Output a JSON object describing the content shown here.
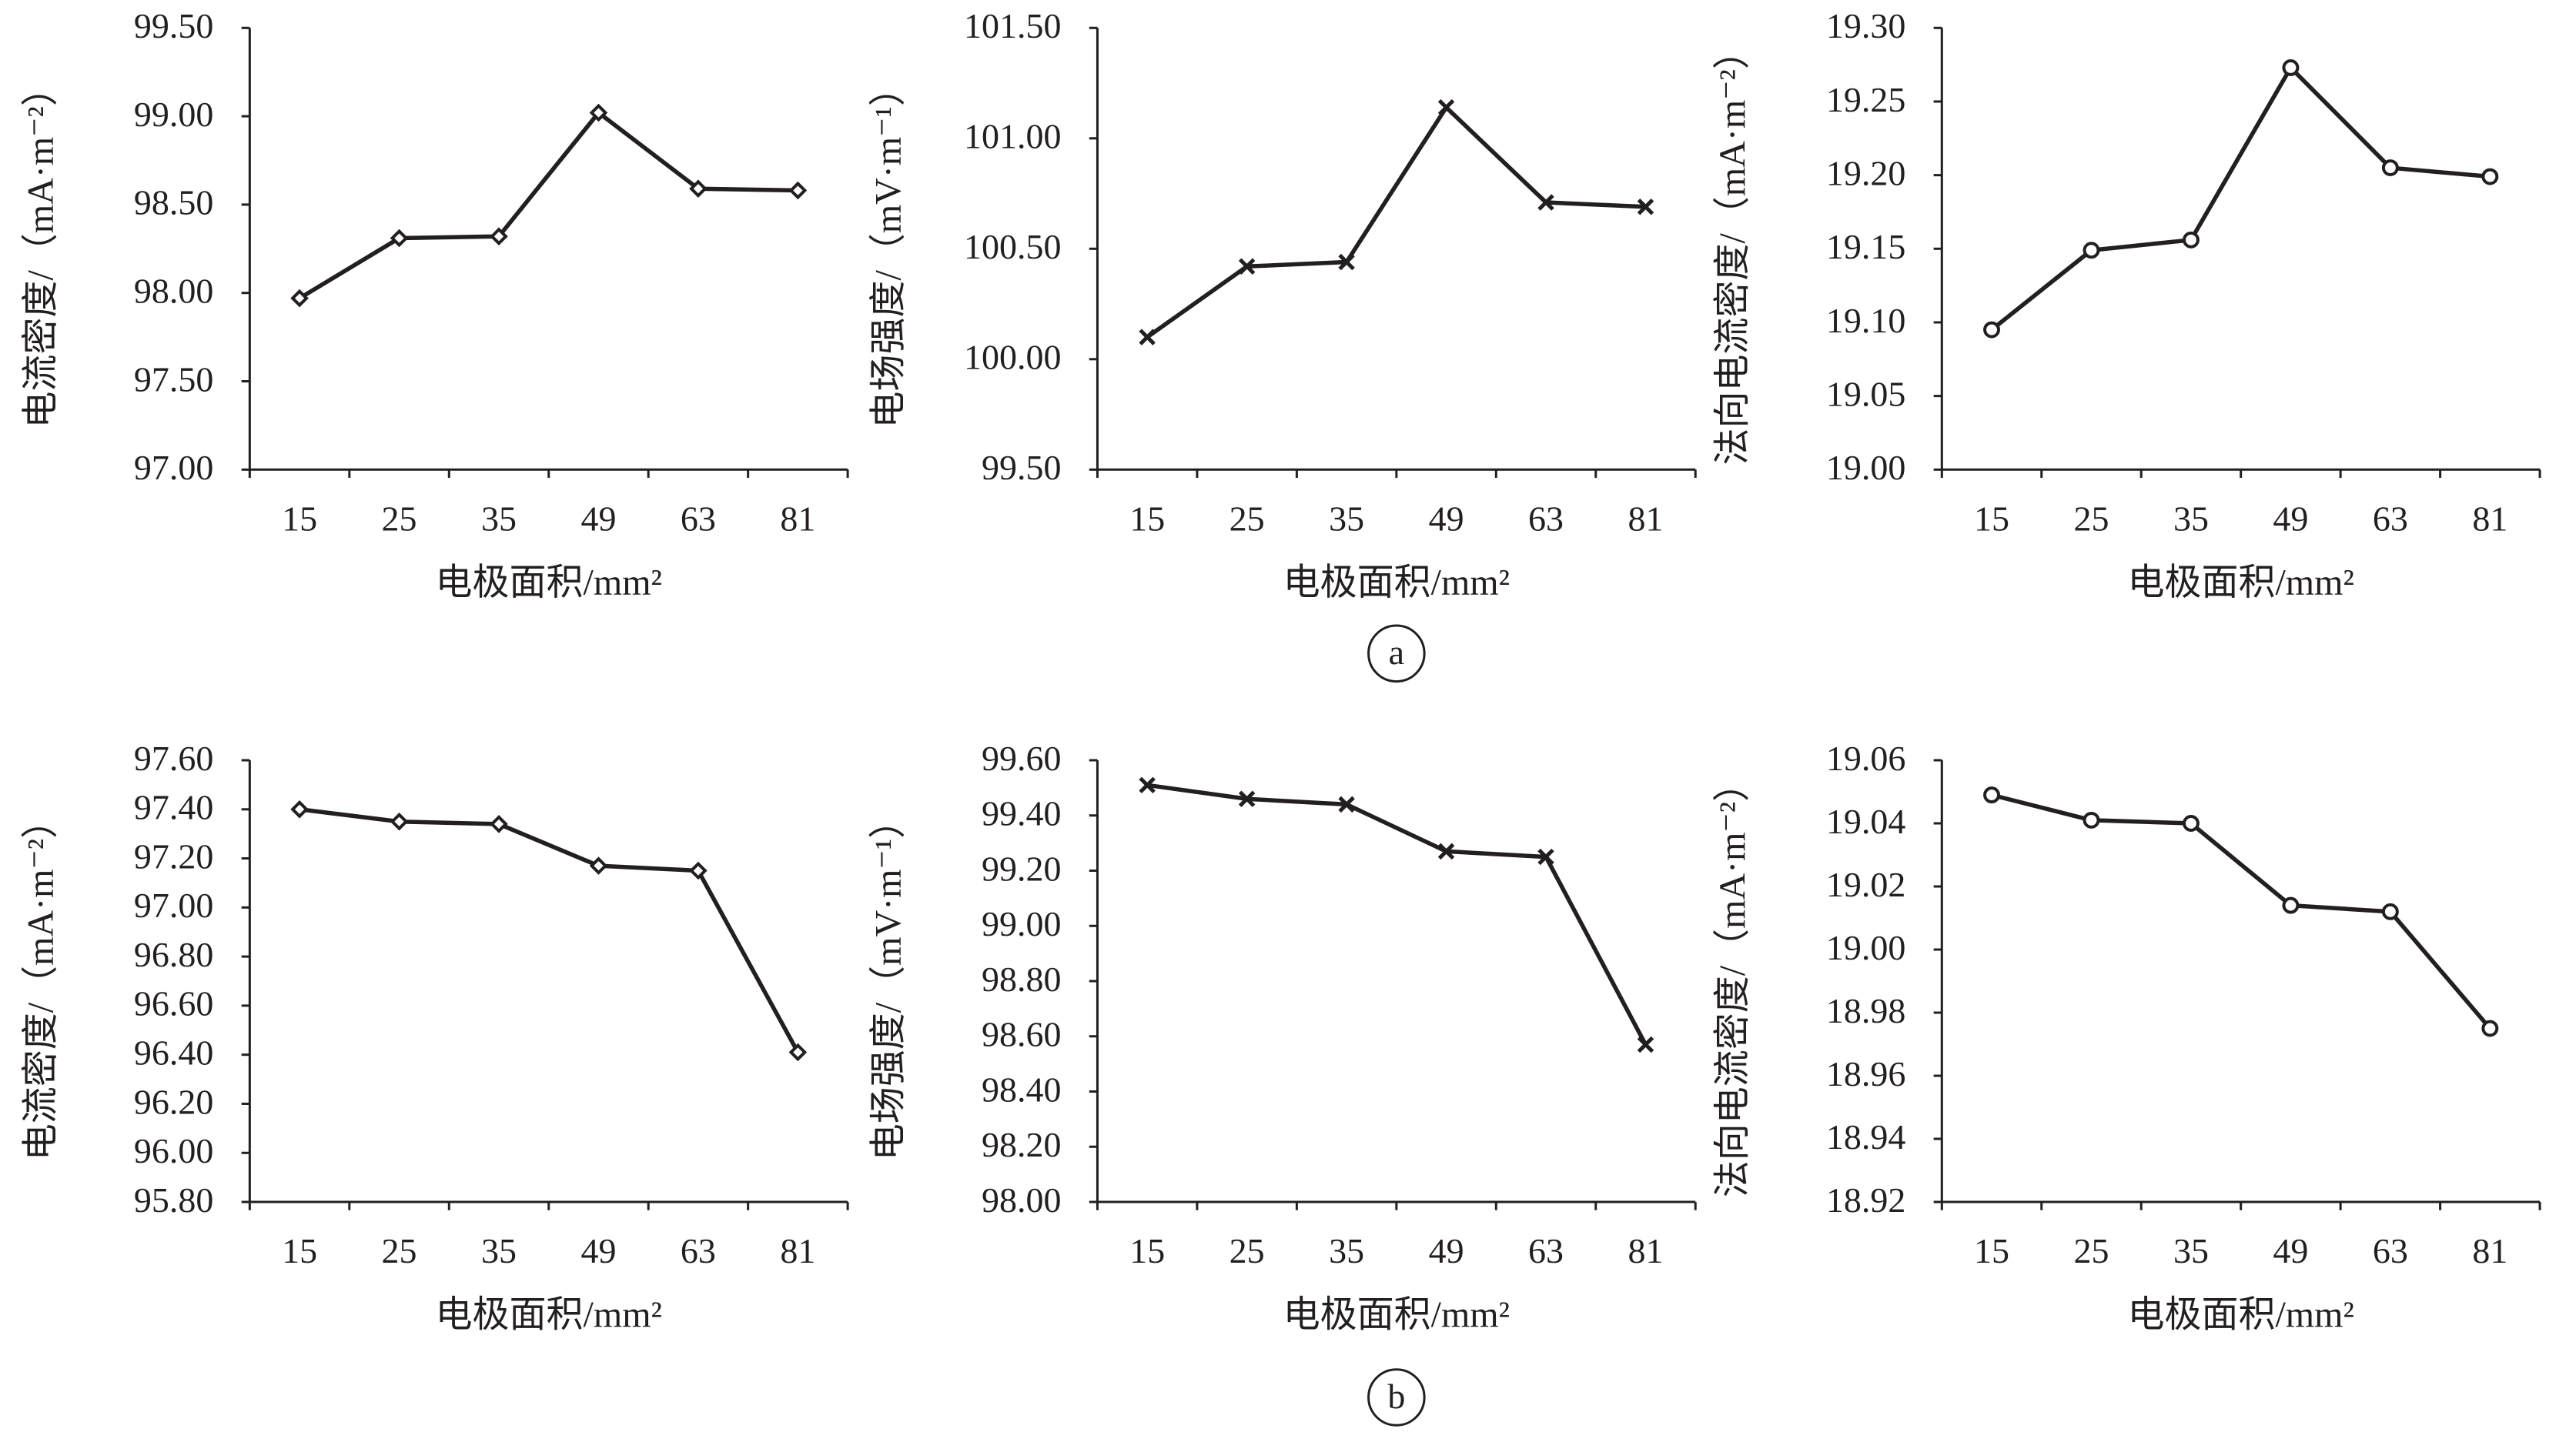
{
  "panel_labels": [
    "a",
    "b"
  ],
  "chart_data": [
    {
      "type": "line",
      "panel": "a",
      "marker": "diamond",
      "categories": [
        "15",
        "25",
        "35",
        "49",
        "63",
        "81"
      ],
      "values": [
        97.97,
        98.31,
        98.32,
        99.02,
        98.59,
        98.58
      ],
      "xlabel": "电极面积/mm²",
      "ylabel": "电流密度/（mA·m⁻²）",
      "ylim": [
        97.0,
        99.5
      ],
      "yticks": [
        "97.00",
        "97.50",
        "98.00",
        "98.50",
        "99.00",
        "99.50"
      ],
      "grid": false,
      "color": "#231f20"
    },
    {
      "type": "line",
      "panel": "a",
      "marker": "x",
      "categories": [
        "15",
        "25",
        "35",
        "49",
        "63",
        "81"
      ],
      "values": [
        100.1,
        100.42,
        100.44,
        101.14,
        100.71,
        100.69
      ],
      "xlabel": "电极面积/mm²",
      "ylabel": "电场强度/（mV·m⁻¹）",
      "ylim": [
        99.5,
        101.5
      ],
      "yticks": [
        "99.50",
        "100.00",
        "100.50",
        "101.00",
        "101.50"
      ],
      "grid": false,
      "color": "#231f20"
    },
    {
      "type": "line",
      "panel": "a",
      "marker": "circle",
      "categories": [
        "15",
        "25",
        "35",
        "49",
        "63",
        "81"
      ],
      "values": [
        19.095,
        19.149,
        19.156,
        19.273,
        19.205,
        19.199
      ],
      "xlabel": "电极面积/mm²",
      "ylabel": "法向电流密度/（mA·m⁻²）",
      "ylim": [
        19.0,
        19.3
      ],
      "yticks": [
        "19.00",
        "19.05",
        "19.10",
        "19.15",
        "19.20",
        "19.25",
        "19.30"
      ],
      "grid": false,
      "color": "#231f20"
    },
    {
      "type": "line",
      "panel": "b",
      "marker": "diamond",
      "categories": [
        "15",
        "25",
        "35",
        "49",
        "63",
        "81"
      ],
      "values": [
        97.4,
        97.35,
        97.34,
        97.17,
        97.15,
        96.41
      ],
      "xlabel": "电极面积/mm²",
      "ylabel": "电流密度/（mA·m⁻²）",
      "ylim": [
        95.8,
        97.6
      ],
      "yticks": [
        "95.80",
        "96.00",
        "96.20",
        "96.40",
        "96.60",
        "96.80",
        "97.00",
        "97.20",
        "97.40",
        "97.60"
      ],
      "grid": false,
      "color": "#231f20"
    },
    {
      "type": "line",
      "panel": "b",
      "marker": "x",
      "categories": [
        "15",
        "25",
        "35",
        "49",
        "63",
        "81"
      ],
      "values": [
        99.51,
        99.46,
        99.44,
        99.27,
        99.25,
        98.57
      ],
      "xlabel": "电极面积/mm²",
      "ylabel": "电场强度/（mV·m⁻¹）",
      "ylim": [
        98.0,
        99.6
      ],
      "yticks": [
        "98.00",
        "98.20",
        "98.40",
        "98.60",
        "98.80",
        "99.00",
        "99.20",
        "99.40",
        "99.60"
      ],
      "grid": false,
      "color": "#231f20"
    },
    {
      "type": "line",
      "panel": "b",
      "marker": "circle",
      "categories": [
        "15",
        "25",
        "35",
        "49",
        "63",
        "81"
      ],
      "values": [
        19.049,
        19.041,
        19.04,
        19.014,
        19.012,
        18.975
      ],
      "xlabel": "电极面积/mm²",
      "ylabel": "法向电流密度/（mA·m⁻²）",
      "ylim": [
        18.92,
        19.06
      ],
      "yticks": [
        "18.92",
        "18.94",
        "18.96",
        "18.98",
        "19.00",
        "19.02",
        "19.04",
        "19.06"
      ],
      "grid": false,
      "color": "#231f20"
    }
  ]
}
